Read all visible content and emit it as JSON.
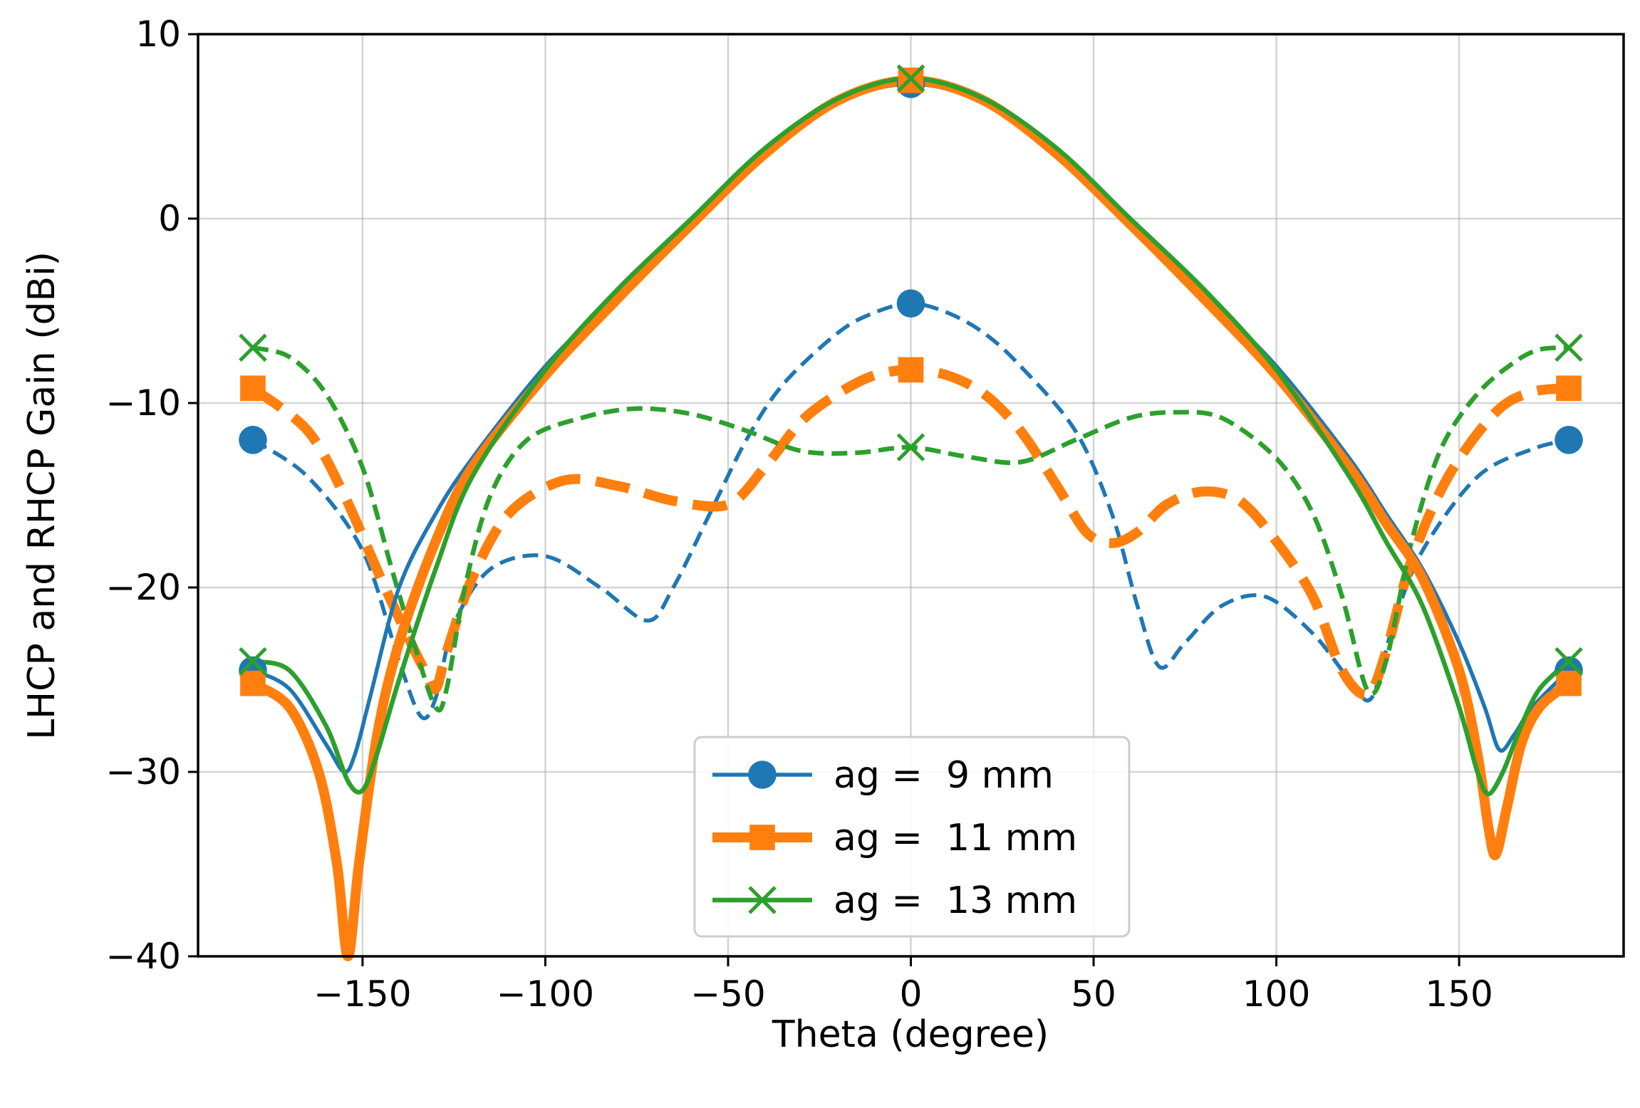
{
  "chart_data": {
    "type": "line",
    "title": "",
    "xlabel": "Theta (degree)",
    "ylabel": "LHCP and RHCP Gain (dBi)",
    "xlim": [
      -195,
      195
    ],
    "ylim": [
      -40,
      10
    ],
    "xticks": [
      -150,
      -100,
      -50,
      0,
      50,
      100,
      150
    ],
    "yticks": [
      -40,
      -30,
      -20,
      -10,
      0,
      10
    ],
    "xtick_labels": [
      "−150",
      "−100",
      "−50",
      "0",
      "50",
      "100",
      "150"
    ],
    "ytick_labels": [
      "−40",
      "−30",
      "−20",
      "−10",
      "0",
      "10"
    ],
    "grid": true,
    "legend_position": "lower center",
    "series": [
      {
        "name": "ag =  9 mm",
        "color": "#1f77b4",
        "marker": "circle",
        "style": "solid",
        "kind": "co-pol",
        "x": [
          -180,
          -170,
          -160,
          -155,
          -152,
          -148,
          -140,
          -130,
          -120,
          -100,
          -80,
          -60,
          -40,
          -20,
          0,
          20,
          40,
          60,
          80,
          100,
          120,
          130,
          140,
          150,
          157,
          161,
          165,
          170,
          180
        ],
        "y": [
          -24.5,
          -25.5,
          -28.5,
          -30,
          -29,
          -26,
          -20,
          -16,
          -13,
          -8,
          -4,
          0,
          3.5,
          6.3,
          7.3,
          6.3,
          3.5,
          0,
          -4,
          -8,
          -13,
          -16,
          -19,
          -23,
          -26.5,
          -28.8,
          -28,
          -26.5,
          -24.5
        ]
      },
      {
        "name": "ag =  11 mm",
        "color": "#ff7f0e",
        "marker": "square",
        "style": "solid",
        "kind": "co-pol",
        "x": [
          -180,
          -170,
          -162,
          -157,
          -154,
          -151,
          -146,
          -140,
          -130,
          -120,
          -100,
          -80,
          -60,
          -40,
          -20,
          0,
          20,
          40,
          60,
          80,
          100,
          120,
          130,
          140,
          150,
          155,
          158,
          160,
          163,
          167,
          172,
          180
        ],
        "y": [
          -25.2,
          -26.5,
          -30,
          -35,
          -40,
          -35,
          -28,
          -23,
          -17.5,
          -13.5,
          -8.5,
          -4.3,
          -0.3,
          3.5,
          6.4,
          7.5,
          6.4,
          3.5,
          -0.3,
          -4.3,
          -8.5,
          -13.5,
          -16.5,
          -19.5,
          -24.5,
          -29,
          -33,
          -34.5,
          -32,
          -28.5,
          -26.5,
          -25.2
        ]
      },
      {
        "name": "ag =  13 mm",
        "color": "#2ca02c",
        "marker": "x",
        "style": "solid",
        "kind": "co-pol",
        "x": [
          -180,
          -170,
          -160,
          -154,
          -150,
          -146,
          -140,
          -130,
          -120,
          -100,
          -80,
          -60,
          -40,
          -20,
          0,
          20,
          40,
          60,
          80,
          100,
          120,
          130,
          140,
          150,
          155,
          158,
          162,
          167,
          172,
          180
        ],
        "y": [
          -24,
          -24.5,
          -27.5,
          -30.5,
          -31,
          -29,
          -25,
          -19,
          -14,
          -8.2,
          -3.8,
          0,
          3.8,
          6.5,
          7.6,
          6.5,
          3.8,
          0,
          -3.8,
          -8.2,
          -14,
          -17.5,
          -21,
          -26.5,
          -30,
          -31.2,
          -30,
          -27.5,
          -25.5,
          -24
        ]
      },
      {
        "name": "ag =  9 mm",
        "color": "#1f77b4",
        "marker": "circle",
        "style": "dashed",
        "kind": "cross-pol",
        "x": [
          -180,
          -165,
          -150,
          -140,
          -134,
          -130,
          -125,
          -115,
          -100,
          -85,
          -72,
          -65,
          -55,
          -45,
          -35,
          -20,
          -10,
          0,
          10,
          20,
          30,
          45,
          55,
          62,
          68,
          75,
          85,
          97,
          110,
          120,
          126,
          132,
          140,
          155,
          170,
          180
        ],
        "y": [
          -12,
          -14,
          -18,
          -24,
          -27,
          -26,
          -22,
          -19,
          -18.3,
          -20,
          -21.8,
          -20,
          -16,
          -12,
          -9,
          -6.2,
          -5.1,
          -4.6,
          -5.1,
          -6.2,
          -8,
          -11.5,
          -16,
          -21,
          -24.3,
          -23,
          -21,
          -20.5,
          -22.5,
          -25,
          -26,
          -22,
          -18,
          -14,
          -12.5,
          -12
        ]
      },
      {
        "name": "ag =  11 mm",
        "color": "#ff7f0e",
        "marker": "square",
        "style": "dashed",
        "kind": "cross-pol",
        "x": [
          -180,
          -165,
          -155,
          -145,
          -138,
          -133,
          -130,
          -127,
          -120,
          -110,
          -95,
          -80,
          -65,
          -50,
          -40,
          -30,
          -20,
          -10,
          0,
          10,
          20,
          30,
          40,
          48,
          55,
          62,
          70,
          80,
          90,
          100,
          110,
          118,
          125,
          130,
          137,
          147,
          160,
          170,
          180
        ],
        "y": [
          -9.2,
          -11.5,
          -15,
          -19.5,
          -22.5,
          -24.5,
          -25.5,
          -23.5,
          -19.5,
          -16,
          -14.2,
          -14.5,
          -15.3,
          -15.5,
          -13.5,
          -11,
          -9.5,
          -8.5,
          -8.2,
          -8.5,
          -9.5,
          -11.5,
          -14.5,
          -17,
          -17.6,
          -17,
          -15.5,
          -14.8,
          -15.3,
          -17.5,
          -20.5,
          -24.5,
          -25.8,
          -23.5,
          -18.5,
          -14,
          -10.5,
          -9.4,
          -9.2
        ]
      },
      {
        "name": "ag =  13 mm",
        "color": "#2ca02c",
        "marker": "x",
        "style": "dashed",
        "kind": "cross-pol",
        "x": [
          -180,
          -170,
          -160,
          -150,
          -142,
          -136,
          -130,
          -127,
          -122,
          -115,
          -105,
          -90,
          -75,
          -60,
          -45,
          -30,
          -15,
          0,
          15,
          30,
          45,
          60,
          72,
          85,
          100,
          110,
          118,
          125,
          130,
          137,
          145,
          155,
          165,
          172,
          180
        ],
        "y": [
          -7,
          -7.5,
          -9.5,
          -13.5,
          -19,
          -23,
          -26.5,
          -25.5,
          -20,
          -15,
          -12,
          -10.8,
          -10.3,
          -10.6,
          -11.5,
          -12.6,
          -12.7,
          -12.4,
          -12.9,
          -13.2,
          -12,
          -10.8,
          -10.5,
          -10.8,
          -13,
          -16,
          -20.5,
          -25.6,
          -24,
          -17.5,
          -12.5,
          -9.5,
          -7.8,
          -7.1,
          -7
        ]
      }
    ]
  }
}
